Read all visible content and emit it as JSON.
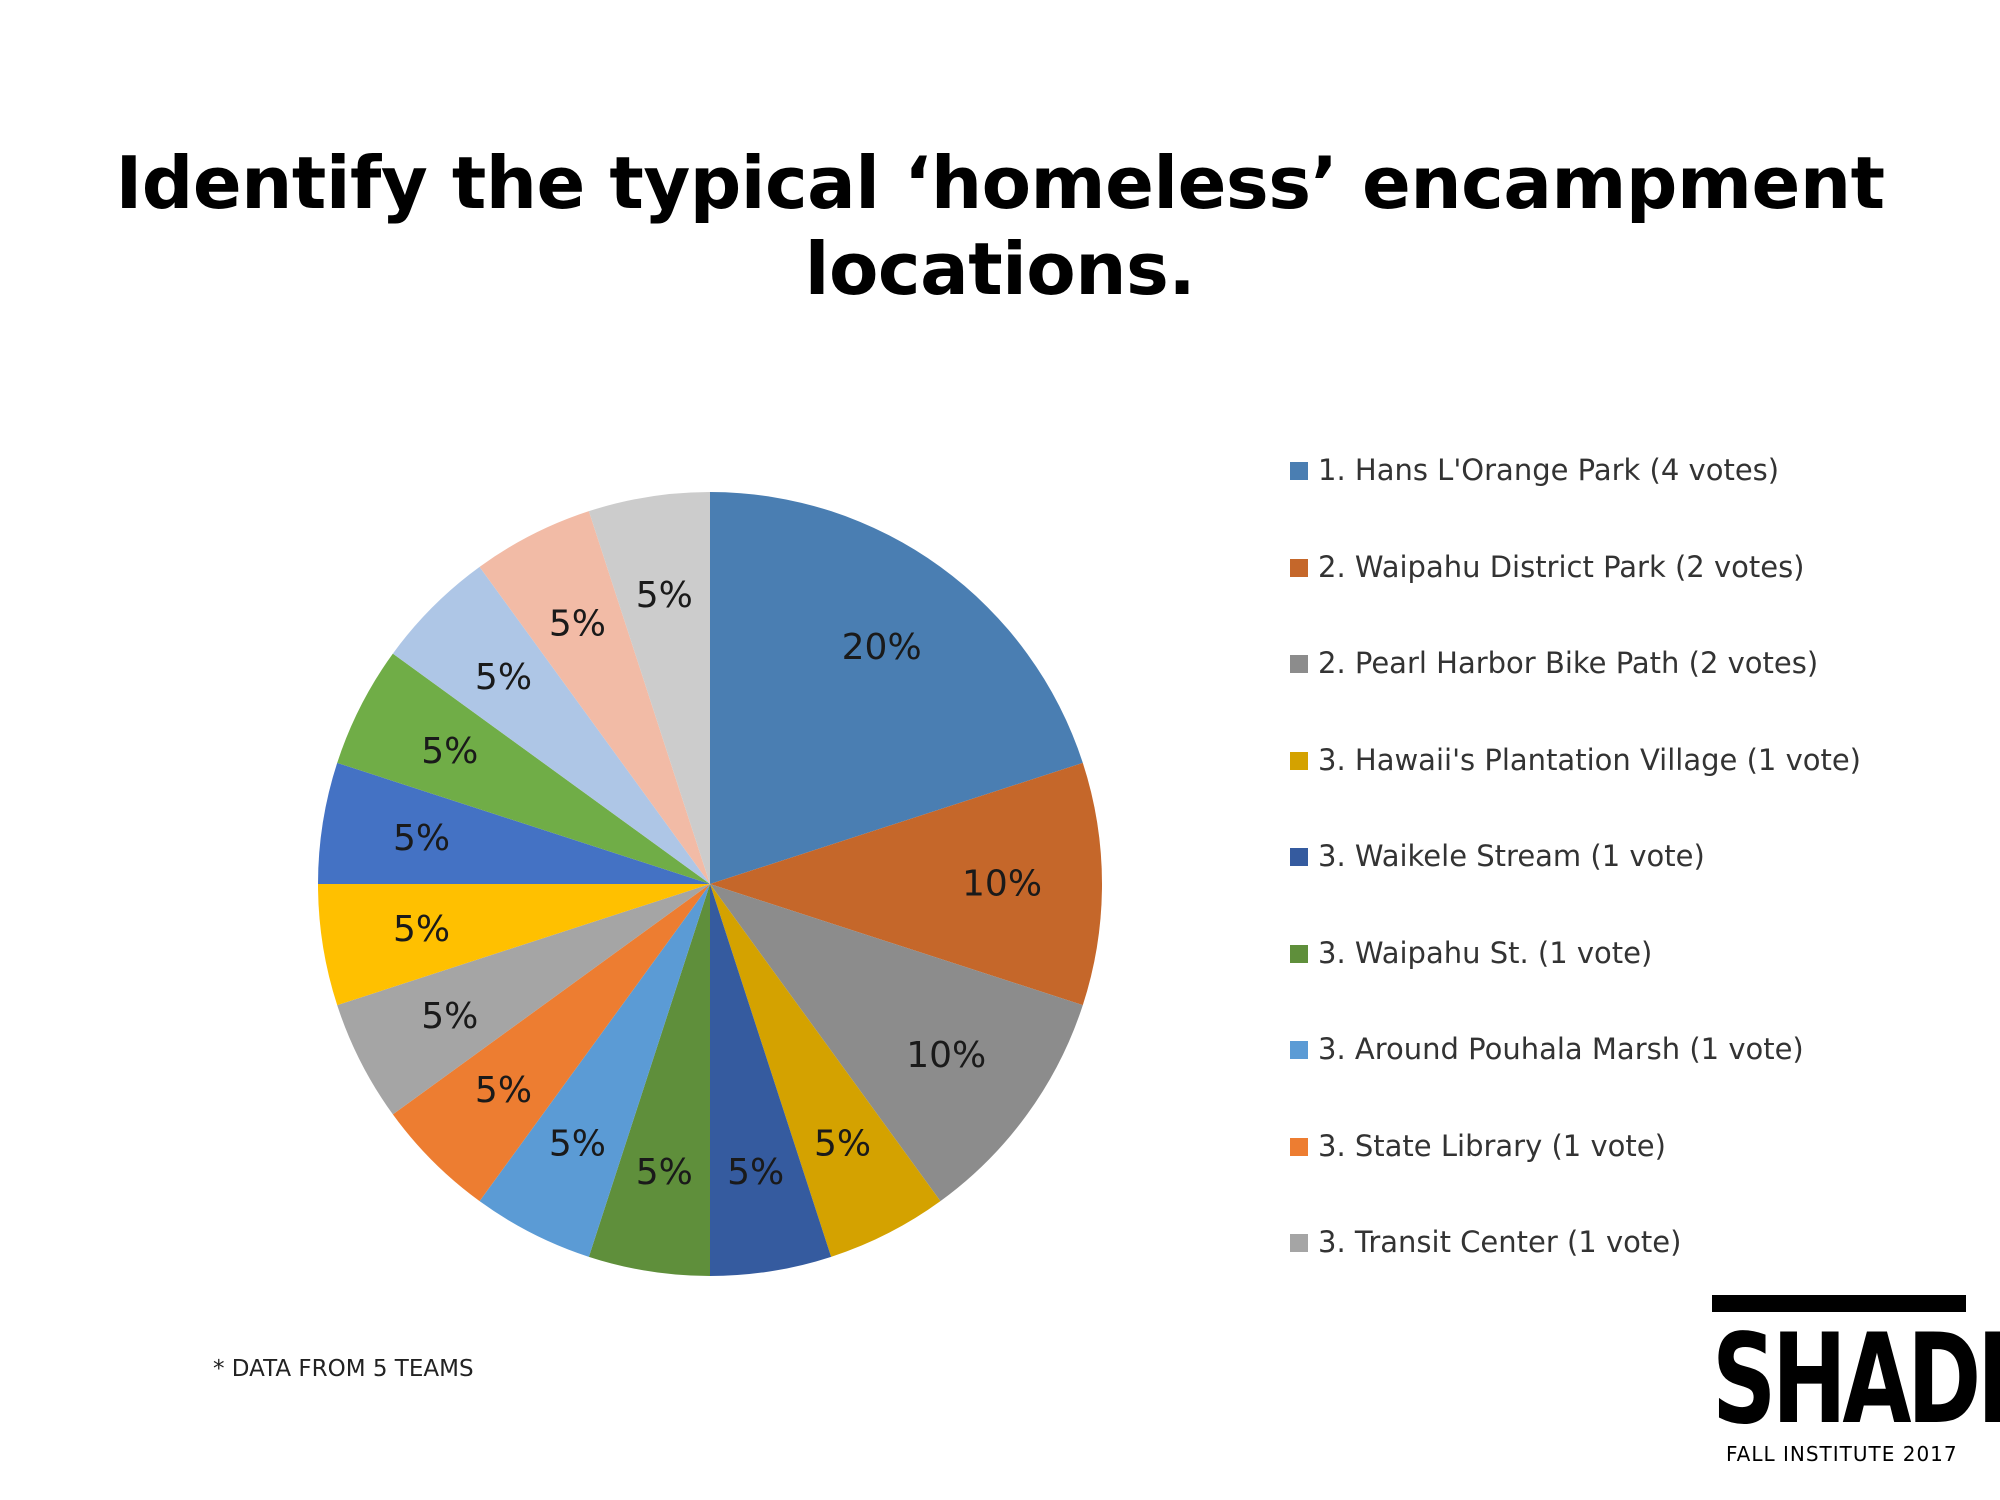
{
  "chart_data": {
    "type": "pie",
    "title_lines": [
      "Identify the typical ‘homeless’ encampment",
      "locations."
    ],
    "legend_placement": "right",
    "slices": [
      {
        "label": "1. Hans L'Orange Park (4 votes)",
        "value": 20,
        "display": "20%",
        "color": "#4A7EB2"
      },
      {
        "label": "2. Waipahu District Park (2 votes)",
        "value": 10,
        "display": "10%",
        "color": "#C5672A"
      },
      {
        "label": "2. Pearl Harbor Bike Path (2 votes)",
        "value": 10,
        "display": "10%",
        "color": "#8C8C8C"
      },
      {
        "label": "3. Hawaii's Plantation Village (1 vote)",
        "value": 5,
        "display": "5%",
        "color": "#D4A200"
      },
      {
        "label": "3. Waikele Stream (1 vote)",
        "value": 5,
        "display": "5%",
        "color": "#355B9F"
      },
      {
        "label": "3. Waipahu St. (1 vote)",
        "value": 5,
        "display": "5%",
        "color": "#5F8F3B"
      },
      {
        "label": "3. Around Pouhala Marsh (1 vote)",
        "value": 5,
        "display": "5%",
        "color": "#5B9BD5"
      },
      {
        "label": "3. State Library (1 vote)",
        "value": 5,
        "display": "5%",
        "color": "#ED7D31"
      },
      {
        "label": "3. Transit Center (1 vote)",
        "value": 5,
        "display": "5%",
        "color": "#A5A5A5"
      },
      {
        "label": "",
        "value": 5,
        "display": "5%",
        "color": "#FFC000"
      },
      {
        "label": "",
        "value": 5,
        "display": "5%",
        "color": "#4472C4"
      },
      {
        "label": "",
        "value": 5,
        "display": "5%",
        "color": "#70AD47"
      },
      {
        "label": "",
        "value": 5,
        "display": "5%",
        "color": "#AEC6E6"
      },
      {
        "label": "",
        "value": 5,
        "display": "5%",
        "color": "#F2BBA6"
      },
      {
        "label": "",
        "value": 5,
        "display": "5%",
        "color": "#CCCCCC"
      }
    ]
  },
  "footnote": "* DATA FROM 5 TEAMS",
  "logo": {
    "word": "SHADE",
    "subtitle": "FALL INSTITUTE 2017"
  }
}
